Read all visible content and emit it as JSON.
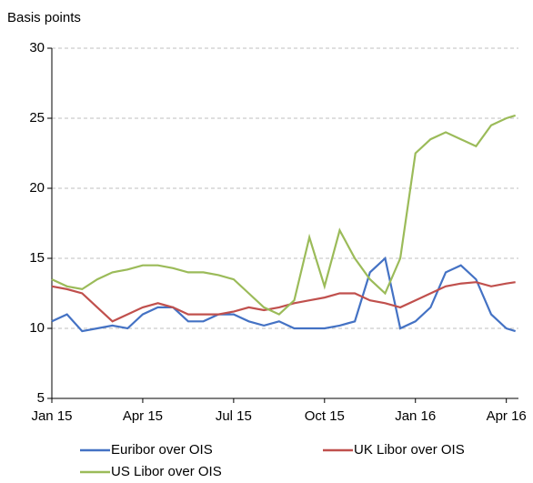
{
  "chart_data": {
    "type": "line",
    "y_label": "Basis points",
    "x": [
      0,
      0.5,
      1,
      1.5,
      2,
      2.5,
      3,
      3.5,
      4,
      4.5,
      5,
      5.5,
      6,
      6.5,
      7,
      7.5,
      8,
      8.5,
      9,
      9.5,
      10,
      10.5,
      11,
      11.5,
      12,
      12.5,
      13,
      13.5,
      14,
      14.5,
      15,
      15.3
    ],
    "series": [
      {
        "name": "Euribor over OIS",
        "color": "#4472c4",
        "values": [
          10.5,
          11,
          9.8,
          10,
          10.2,
          10,
          11,
          11.5,
          11.5,
          10.5,
          10.5,
          11,
          11,
          10.5,
          10.2,
          10.5,
          10,
          10,
          10,
          10.2,
          10.5,
          14,
          15,
          10,
          10.5,
          11.5,
          14,
          14.5,
          13.5,
          11,
          10,
          9.8
        ]
      },
      {
        "name": "UK Libor over OIS",
        "color": "#c0504d",
        "values": [
          13,
          12.8,
          12.5,
          11.5,
          10.5,
          11,
          11.5,
          11.8,
          11.5,
          11,
          11,
          11,
          11.2,
          11.5,
          11.3,
          11.5,
          11.8,
          12,
          12.2,
          12.5,
          12.5,
          12,
          11.8,
          11.5,
          12,
          12.5,
          13,
          13.2,
          13.3,
          13,
          13.2,
          13.3
        ]
      },
      {
        "name": "US Libor over OIS",
        "color": "#9bbb59",
        "values": [
          13.5,
          13,
          12.8,
          13.5,
          14,
          14.2,
          14.5,
          14.5,
          14.3,
          14,
          14,
          13.8,
          13.5,
          12.5,
          11.5,
          11,
          12,
          16.5,
          13,
          17,
          15,
          13.5,
          12.5,
          15,
          22.5,
          23.5,
          24,
          23.5,
          23,
          24.5,
          25,
          25.2
        ]
      }
    ],
    "xlim": [
      0,
      15.4
    ],
    "xticks": [
      {
        "value": 0,
        "label": "Jan 15"
      },
      {
        "value": 3,
        "label": "Apr 15"
      },
      {
        "value": 6,
        "label": "Jul 15"
      },
      {
        "value": 9,
        "label": "Oct 15"
      },
      {
        "value": 12,
        "label": "Jan 16"
      },
      {
        "value": 15,
        "label": "Apr 16"
      }
    ],
    "ylim": [
      5,
      30
    ],
    "yticks": [
      5,
      10,
      15,
      20,
      25,
      30
    ],
    "grid": true
  }
}
